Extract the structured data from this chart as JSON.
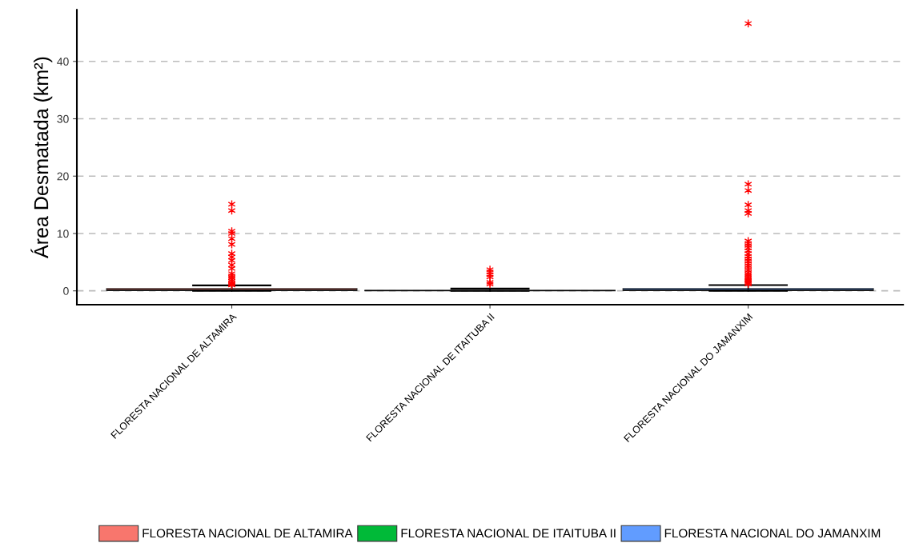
{
  "chart_data": {
    "type": "box",
    "ylabel": "Área Desmatada (km²)",
    "categories": [
      "FLORESTA NACIONAL DE ALTAMIRA",
      "FLORESTA NACIONAL DE ITAITUBA II",
      "FLORESTA NACIONAL DO JAMANXIM"
    ],
    "series": [
      {
        "name": "FLORESTA NACIONAL DE ALTAMIRA",
        "color": "#f8766d",
        "boxes": [
          {
            "low": 0,
            "q1": 0.05,
            "median": 0.15,
            "q3": 0.4,
            "high": 0.95,
            "outliers": [
              15.1,
              14.0,
              10.4,
              10.0,
              9.1,
              8.1,
              6.5,
              5.9,
              5.3,
              4.5,
              3.9,
              3.0,
              2.6,
              2.3,
              2.0,
              1.7,
              1.4,
              1.2,
              1.0
            ]
          },
          null,
          null
        ]
      },
      {
        "name": "FLORESTA NACIONAL DE ITAITUBA II",
        "color": "#00ba38",
        "boxes": [
          null,
          {
            "low": 0,
            "q1": 0.0,
            "median": 0.05,
            "q3": 0.1,
            "high": 0.4,
            "outliers": [
              3.7,
              3.3,
              2.8,
              2.4,
              1.5,
              1.2
            ]
          },
          null
        ]
      },
      {
        "name": "FLORESTA NACIONAL DO JAMANXIM",
        "color": "#619cff",
        "boxes": [
          null,
          null,
          {
            "low": 0,
            "q1": 0.05,
            "median": 0.15,
            "q3": 0.4,
            "high": 1.0,
            "outliers": [
              46.6,
              18.6,
              17.5,
              15.0,
              14.0,
              13.5,
              8.7,
              8.3,
              7.9,
              7.5,
              7.0,
              6.5,
              6.0,
              5.6,
              5.2,
              4.8,
              4.4,
              4.0,
              3.6,
              3.2,
              2.9,
              2.6,
              2.3,
              2.0,
              1.8,
              1.6,
              1.4,
              1.2
            ]
          }
        ]
      }
    ],
    "ylim": [
      -2.4,
      49
    ],
    "yticks": [
      0,
      10,
      20,
      30,
      40
    ],
    "grid": "y",
    "legend": "bottom",
    "marker": "star"
  }
}
